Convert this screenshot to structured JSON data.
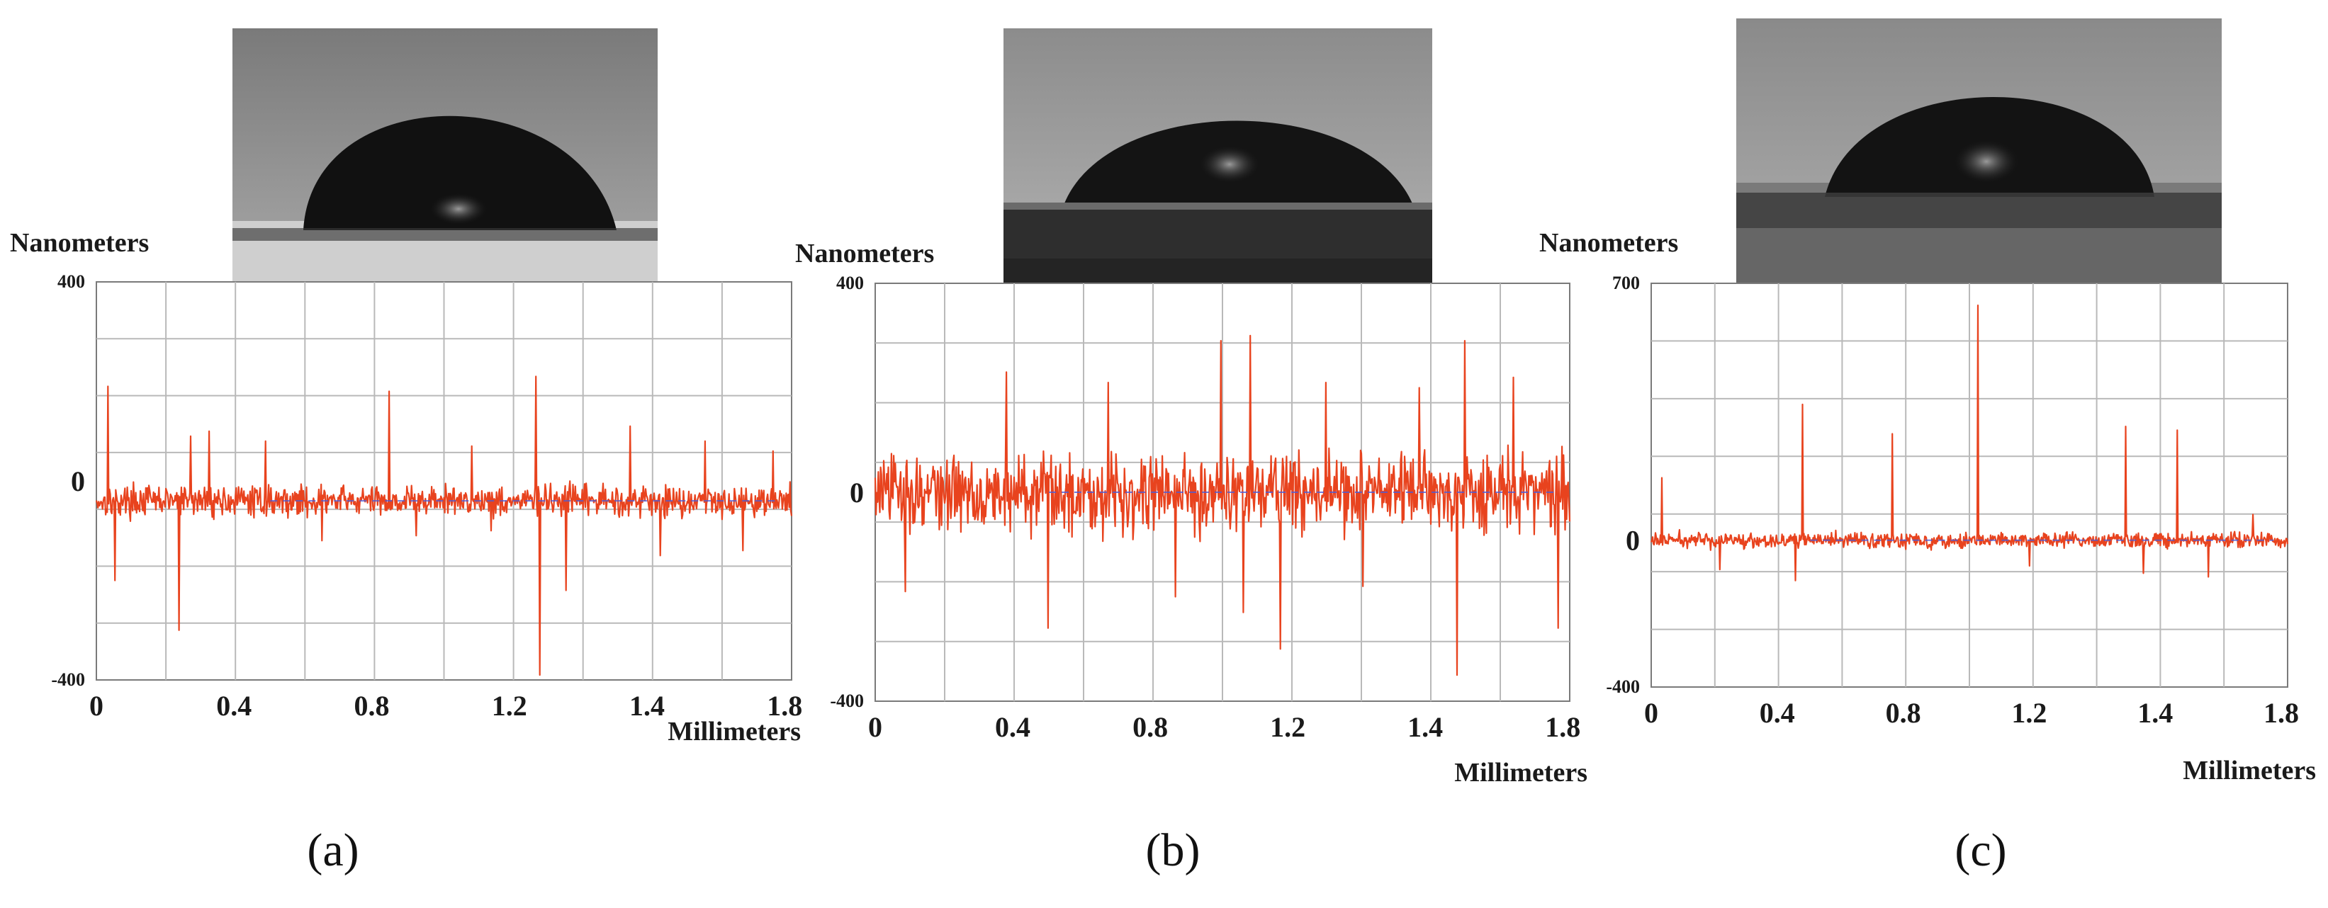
{
  "figure": {
    "panels": [
      {
        "label": "(a)",
        "chart_data": {
          "type": "line",
          "ylabel": "Nanometers",
          "xlabel": "Millimeters",
          "xlim": [
            0,
            1.85
          ],
          "ylim": [
            -400,
            400
          ],
          "x_ticks": [
            "0",
            "0.4",
            "0.8",
            "1.2",
            "1.4",
            "1.8"
          ],
          "y_ticks": [
            "400",
            "0",
            "-400"
          ],
          "grid": true,
          "series": [
            {
              "color": "#e8431e",
              "noise_amplitude": 45,
              "spikes": [
                [
                  0.03,
                  190
                ],
                [
                  0.05,
                  -200
                ],
                [
                  0.22,
                  -300
                ],
                [
                  0.25,
                  90
                ],
                [
                  0.3,
                  100
                ],
                [
                  0.45,
                  80
                ],
                [
                  0.6,
                  -120
                ],
                [
                  0.78,
                  180
                ],
                [
                  0.85,
                  -110
                ],
                [
                  1.0,
                  70
                ],
                [
                  1.05,
                  -100
                ],
                [
                  1.17,
                  210
                ],
                [
                  1.18,
                  -390
                ],
                [
                  1.25,
                  -220
                ],
                [
                  1.42,
                  110
                ],
                [
                  1.5,
                  -150
                ],
                [
                  1.62,
                  80
                ],
                [
                  1.72,
                  -140
                ],
                [
                  1.8,
                  60
                ]
              ]
            }
          ],
          "baseline": {
            "y": -40,
            "color": "#4d5bd6"
          }
        }
      },
      {
        "label": "(b)",
        "chart_data": {
          "type": "line",
          "ylabel": "Nanometers",
          "xlabel": "Millimeters",
          "xlim": [
            0,
            1.85
          ],
          "ylim": [
            -400,
            400
          ],
          "x_ticks": [
            "0",
            "0.4",
            "0.8",
            "1.2",
            "1.4",
            "1.8"
          ],
          "y_ticks": [
            "400",
            "0",
            "-400"
          ],
          "grid": true,
          "series": [
            {
              "color": "#e8431e",
              "noise_amplitude": 110,
              "spikes": [
                [
                  0.08,
                  -190
                ],
                [
                  0.35,
                  230
                ],
                [
                  0.46,
                  -260
                ],
                [
                  0.62,
                  210
                ],
                [
                  0.8,
                  -200
                ],
                [
                  0.92,
                  290
                ],
                [
                  0.98,
                  -230
                ],
                [
                  1.0,
                  300
                ],
                [
                  1.08,
                  -300
                ],
                [
                  1.2,
                  210
                ],
                [
                  1.3,
                  -180
                ],
                [
                  1.45,
                  200
                ],
                [
                  1.55,
                  -350
                ],
                [
                  1.57,
                  290
                ],
                [
                  1.7,
                  220
                ],
                [
                  1.82,
                  -260
                ]
              ]
            }
          ],
          "baseline": {
            "y": 0,
            "color": "#4d5bd6"
          }
        }
      },
      {
        "label": "(c)",
        "chart_data": {
          "type": "line",
          "ylabel": "Nanometers",
          "xlabel": "Millimeters",
          "xlim": [
            0,
            1.85
          ],
          "ylim": [
            -400,
            700
          ],
          "x_ticks": [
            "0",
            "0.4",
            "0.8",
            "1.2",
            "1.4",
            "1.8"
          ],
          "y_ticks": [
            "700",
            "0",
            "-400"
          ],
          "grid": true,
          "series": [
            {
              "color": "#e8431e",
              "noise_amplitude": 30,
              "spikes": [
                [
                  0.03,
                  170
                ],
                [
                  0.2,
                  -80
                ],
                [
                  0.42,
                  -110
                ],
                [
                  0.44,
                  370
                ],
                [
                  0.7,
                  290
                ],
                [
                  0.95,
                  640
                ],
                [
                  1.1,
                  -70
                ],
                [
                  1.38,
                  310
                ],
                [
                  1.43,
                  -90
                ],
                [
                  1.53,
                  300
                ],
                [
                  1.62,
                  -100
                ],
                [
                  1.75,
                  70
                ]
              ]
            }
          ],
          "baseline": {
            "y": 0,
            "color": "#4d5bd6"
          }
        }
      }
    ]
  }
}
